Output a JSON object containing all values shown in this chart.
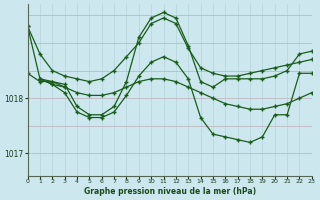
{
  "title": "Graphe pression niveau de la mer (hPa)",
  "bg_color": "#cce8ee",
  "grid_color_v": "#b8d8de",
  "grid_color_h": "#c0b8c0",
  "line_color": "#1a5c1a",
  "xlim": [
    0,
    23
  ],
  "ylim": [
    1016.6,
    1019.7
  ],
  "yticks": [
    1017,
    1018
  ],
  "xticks": [
    0,
    1,
    2,
    3,
    4,
    5,
    6,
    7,
    8,
    9,
    10,
    11,
    12,
    13,
    14,
    15,
    16,
    17,
    18,
    19,
    20,
    21,
    22,
    23
  ],
  "series": [
    {
      "x": [
        0,
        1,
        2,
        3,
        4,
        5,
        6,
        7,
        8,
        9,
        10,
        11,
        12,
        13,
        14,
        15,
        16,
        17,
        18,
        19,
        20,
        21,
        22,
        23
      ],
      "y": [
        1019.3,
        1018.8,
        1018.5,
        1018.4,
        1018.35,
        1018.3,
        1018.35,
        1018.5,
        1018.75,
        1019.0,
        1019.35,
        1019.45,
        1019.35,
        1018.9,
        1018.55,
        1018.45,
        1018.4,
        1018.4,
        1018.45,
        1018.5,
        1018.55,
        1018.6,
        1018.65,
        1018.7
      ]
    },
    {
      "x": [
        0,
        1,
        2,
        3,
        4,
        5,
        6,
        7,
        8,
        9,
        10,
        11,
        12,
        13,
        14,
        15,
        16,
        17,
        18,
        19,
        20,
        21,
        22,
        23
      ],
      "y": [
        1018.45,
        1018.3,
        1018.3,
        1018.2,
        1018.1,
        1018.05,
        1018.05,
        1018.1,
        1018.2,
        1018.3,
        1018.35,
        1018.35,
        1018.3,
        1018.2,
        1018.1,
        1018.0,
        1017.9,
        1017.85,
        1017.8,
        1017.8,
        1017.85,
        1017.9,
        1018.0,
        1018.1
      ]
    },
    {
      "x": [
        1,
        2,
        3,
        4,
        5,
        6,
        7,
        8,
        9,
        10,
        11,
        12,
        13,
        14,
        15,
        16,
        17,
        18,
        19,
        20,
        21,
        22,
        23
      ],
      "y": [
        1018.35,
        1018.3,
        1018.25,
        1017.85,
        1017.7,
        1017.7,
        1017.85,
        1018.3,
        1019.1,
        1019.45,
        1019.55,
        1019.45,
        1018.95,
        1018.3,
        1018.2,
        1018.35,
        1018.35,
        1018.35,
        1018.35,
        1018.4,
        1018.5,
        1018.8,
        1018.85
      ]
    },
    {
      "x": [
        1,
        2,
        3,
        4,
        5,
        6,
        7,
        8,
        9,
        10,
        11,
        12,
        13,
        14,
        15,
        16,
        17,
        18,
        19,
        20,
        21,
        22,
        23
      ],
      "y": [
        1018.35,
        1018.25,
        1018.1,
        1017.75,
        1017.65,
        1017.65,
        1017.75,
        1018.05,
        1018.4,
        1018.65,
        1018.75,
        1018.65,
        1018.35,
        1017.65,
        1017.35,
        1017.3,
        1017.25,
        1017.2,
        1017.3,
        1017.7,
        1017.7,
        1018.45,
        1018.45
      ]
    },
    {
      "x": [
        0,
        1,
        2,
        3
      ],
      "y": [
        1019.3,
        1018.35,
        1018.25,
        1018.2
      ]
    }
  ]
}
